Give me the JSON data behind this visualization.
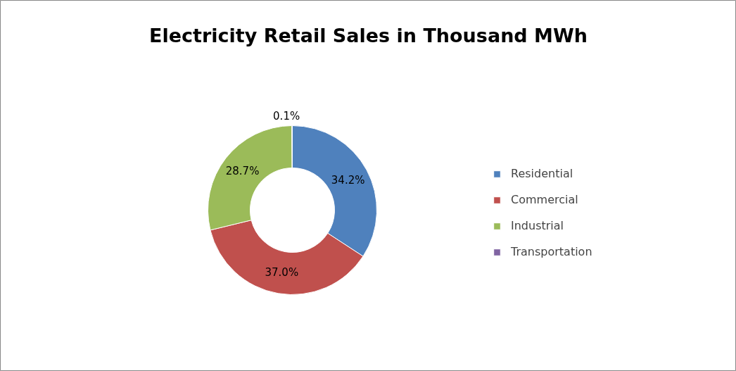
{
  "chart_data": {
    "type": "donut",
    "title": "Electricity Retail Sales in Thousand MWh",
    "categories": [
      "Residential",
      "Commercial",
      "Industrial",
      "Transportation"
    ],
    "values": [
      34.2,
      37.0,
      28.7,
      0.1
    ],
    "value_labels": [
      "34.2%",
      "37.0%",
      "28.7%",
      "0.1%"
    ],
    "colors": [
      "#4f81bd",
      "#c0504d",
      "#9bbb59",
      "#8064a2"
    ],
    "legend": "right"
  }
}
